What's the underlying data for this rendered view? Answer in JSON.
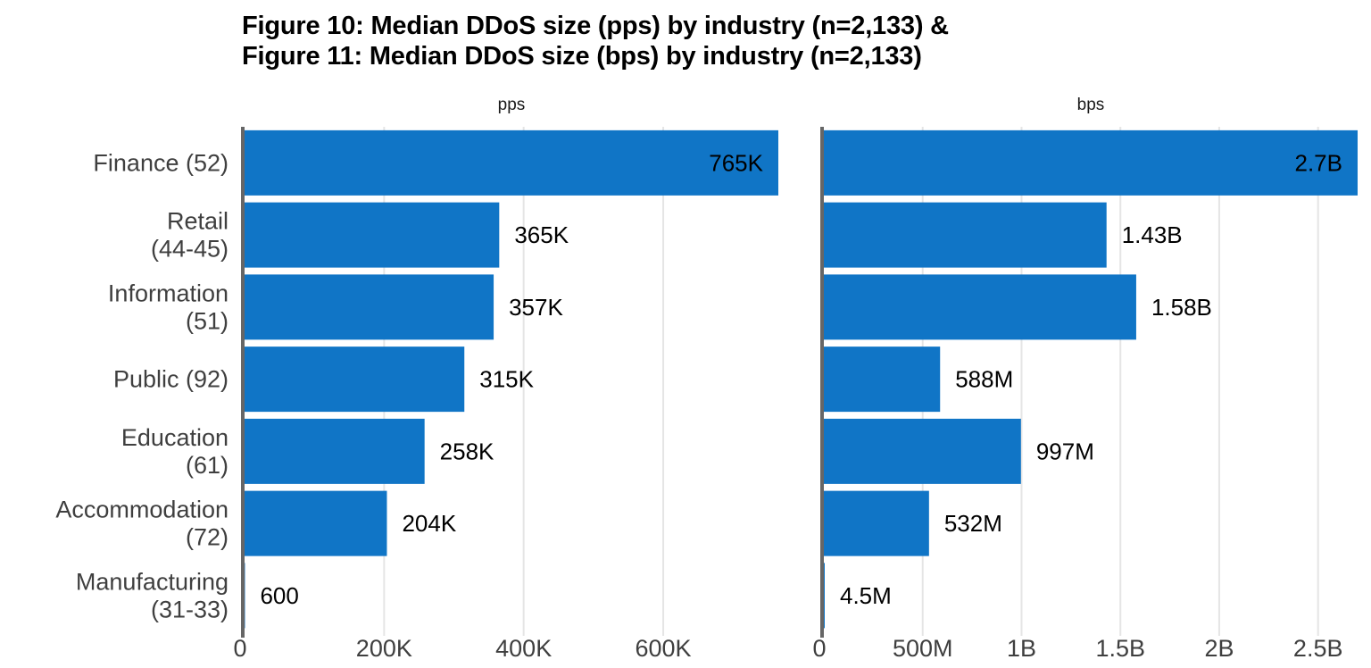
{
  "title": {
    "line1": "Figure 10: Median DDoS size (pps) by industry (n=2,133) &",
    "line2": "Figure 11: Median DDoS size (bps) by industry (n=2,133)"
  },
  "colors": {
    "bar": "#1075C6",
    "axis": "#666666",
    "grid": "#E5E5E5",
    "category_label": "#3F3F3F",
    "value_label": "#000000"
  },
  "chart_data": {
    "type": "bar",
    "orientation": "horizontal",
    "categories": [
      [
        "Finance (52)"
      ],
      [
        "Retail",
        "(44-45)"
      ],
      [
        "Information",
        "(51)"
      ],
      [
        "Public (92)"
      ],
      [
        "Education",
        "(61)"
      ],
      [
        "Accommodation",
        "(72)"
      ],
      [
        "Manufacturing",
        "(31-33)"
      ]
    ],
    "panels": [
      {
        "facet": "pps",
        "values": [
          765000,
          365000,
          357000,
          315000,
          258000,
          204000,
          600
        ],
        "labels": [
          "765K",
          "365K",
          "357K",
          "315K",
          "258K",
          "204K",
          "600"
        ],
        "xlim": [
          0,
          765000
        ],
        "ticks": [
          0,
          200000,
          400000,
          600000
        ],
        "tick_labels": [
          "0",
          "200K",
          "400K",
          "600K"
        ]
      },
      {
        "facet": "bps",
        "values": [
          2700000000,
          1430000000,
          1580000000,
          588000000,
          997000000,
          532000000,
          4500000
        ],
        "labels": [
          "2.7B",
          "1.43B",
          "1.58B",
          "588M",
          "997M",
          "532M",
          "4.5M"
        ],
        "xlim": [
          0,
          2700000000
        ],
        "ticks": [
          0,
          500000000,
          1000000000,
          1500000000,
          2000000000,
          2500000000
        ],
        "tick_labels": [
          "0",
          "500M",
          "1B",
          "1.5B",
          "2B",
          "2.5B"
        ]
      }
    ],
    "grid": true,
    "legend": "none"
  }
}
